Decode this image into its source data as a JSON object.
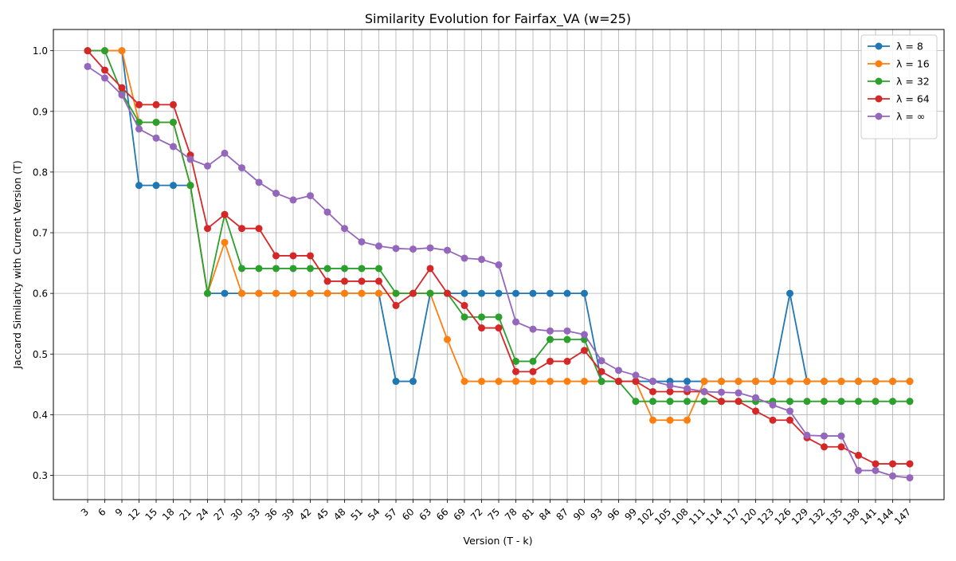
{
  "chart_data": {
    "type": "line",
    "title": "Similarity Evolution for Fairfax_VA (w=25)",
    "xlabel": "Version (T - k)",
    "ylabel": "Jaccard Similarity with Current Version (T)",
    "x": [
      3,
      6,
      9,
      12,
      15,
      18,
      21,
      24,
      27,
      30,
      33,
      36,
      39,
      42,
      45,
      48,
      51,
      54,
      57,
      60,
      63,
      66,
      69,
      72,
      75,
      78,
      81,
      84,
      87,
      90,
      93,
      96,
      99,
      102,
      105,
      108,
      111,
      114,
      117,
      120,
      123,
      126,
      129,
      132,
      135,
      138,
      141,
      144,
      147
    ],
    "ylim": [
      0.26,
      1.035
    ],
    "yticks": [
      "0.3",
      "0.4",
      "0.5",
      "0.6",
      "0.7",
      "0.8",
      "0.9",
      "1.0"
    ],
    "grid": true,
    "legend_position": "top-right",
    "series": [
      {
        "name": "λ = 8",
        "color": "#1f77b4",
        "values": [
          1.0,
          1.0,
          1.0,
          0.778,
          0.778,
          0.778,
          0.778,
          0.6,
          0.6,
          0.6,
          0.6,
          0.6,
          0.6,
          0.6,
          0.6,
          0.6,
          0.6,
          0.6,
          0.455,
          0.455,
          0.6,
          0.6,
          0.6,
          0.6,
          0.6,
          0.6,
          0.6,
          0.6,
          0.6,
          0.6,
          0.455,
          0.455,
          0.455,
          0.455,
          0.455,
          0.455,
          0.455,
          0.455,
          0.455,
          0.455,
          0.455,
          0.6,
          0.455,
          0.455,
          0.455,
          0.455,
          0.455,
          0.455,
          0.455
        ]
      },
      {
        "name": "λ = 16",
        "color": "#ff7f0e",
        "values": [
          1.0,
          1.0,
          1.0,
          0.882,
          0.882,
          0.882,
          0.778,
          0.6,
          0.684,
          0.6,
          0.6,
          0.6,
          0.6,
          0.6,
          0.6,
          0.6,
          0.6,
          0.6,
          0.6,
          0.6,
          0.6,
          0.524,
          0.455,
          0.455,
          0.455,
          0.455,
          0.455,
          0.455,
          0.455,
          0.455,
          0.455,
          0.455,
          0.455,
          0.391,
          0.391,
          0.391,
          0.455,
          0.455,
          0.455,
          0.455,
          0.455,
          0.455,
          0.455,
          0.455,
          0.455,
          0.455,
          0.455,
          0.455,
          0.455
        ]
      },
      {
        "name": "λ = 32",
        "color": "#2ca02c",
        "values": [
          1.0,
          1.0,
          0.93,
          0.882,
          0.882,
          0.882,
          0.778,
          0.6,
          0.73,
          0.641,
          0.641,
          0.641,
          0.641,
          0.641,
          0.641,
          0.641,
          0.641,
          0.641,
          0.6,
          0.6,
          0.6,
          0.6,
          0.561,
          0.561,
          0.561,
          0.488,
          0.488,
          0.524,
          0.524,
          0.524,
          0.455,
          0.455,
          0.422,
          0.422,
          0.422,
          0.422,
          0.422,
          0.422,
          0.422,
          0.422,
          0.422,
          0.422,
          0.422,
          0.422,
          0.422,
          0.422,
          0.422,
          0.422,
          0.422
        ]
      },
      {
        "name": "λ = 64",
        "color": "#d62728",
        "values": [
          1.0,
          0.968,
          0.939,
          0.911,
          0.911,
          0.911,
          0.828,
          0.707,
          0.73,
          0.707,
          0.707,
          0.662,
          0.662,
          0.662,
          0.62,
          0.62,
          0.62,
          0.62,
          0.58,
          0.6,
          0.641,
          0.6,
          0.58,
          0.543,
          0.543,
          0.471,
          0.471,
          0.488,
          0.488,
          0.506,
          0.471,
          0.455,
          0.455,
          0.438,
          0.438,
          0.438,
          0.438,
          0.422,
          0.422,
          0.406,
          0.391,
          0.391,
          0.362,
          0.347,
          0.347,
          0.333,
          0.319,
          0.319,
          0.319
        ]
      },
      {
        "name": "λ = ∞",
        "color": "#9467bd",
        "values": [
          0.974,
          0.955,
          0.927,
          0.871,
          0.856,
          0.842,
          0.821,
          0.81,
          0.831,
          0.807,
          0.783,
          0.765,
          0.754,
          0.761,
          0.734,
          0.707,
          0.685,
          0.678,
          0.674,
          0.673,
          0.675,
          0.671,
          0.658,
          0.656,
          0.647,
          0.553,
          0.541,
          0.538,
          0.538,
          0.532,
          0.489,
          0.473,
          0.465,
          0.455,
          0.448,
          0.443,
          0.438,
          0.437,
          0.436,
          0.428,
          0.416,
          0.406,
          0.366,
          0.365,
          0.365,
          0.308,
          0.308,
          0.299,
          0.296
        ]
      }
    ]
  }
}
